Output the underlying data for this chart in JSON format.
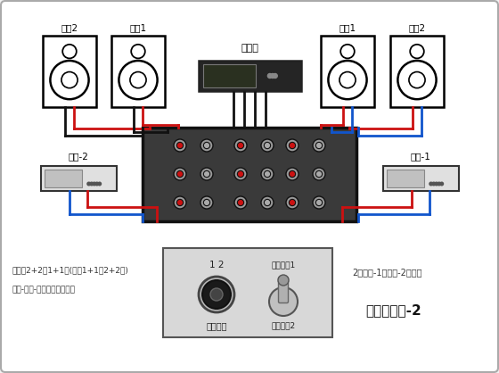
{
  "bg_color": "#f2f2f2",
  "outer_border_color": "#aaaaaa",
  "speaker_labels_left": [
    "音箱2",
    "音箱1"
  ],
  "speaker_labels_right": [
    "音箱1",
    "音箱2"
  ],
  "amp_label": "功放机",
  "source_left_label": "音源-2",
  "source_right_label": "音源-1",
  "switcher_box_label1": "立体声2+2进1+1出(返接1+1进2+2出)",
  "switcher_box_label2": "音源-功放-音箱切换器接线图",
  "right_label1": "2个音源-1台功放-2对音箱",
  "right_label2": "接线图示范-2",
  "knob_label": "音源选择",
  "knob_num_label": "1 2",
  "toggle_label1": "向上音箱1",
  "toggle_label2": "向下音箱2",
  "red_color": "#cc1111",
  "blue_color": "#1155cc",
  "black_color": "#111111",
  "switcher_fill": "#3a3a3a",
  "amp_fill": "#252525"
}
